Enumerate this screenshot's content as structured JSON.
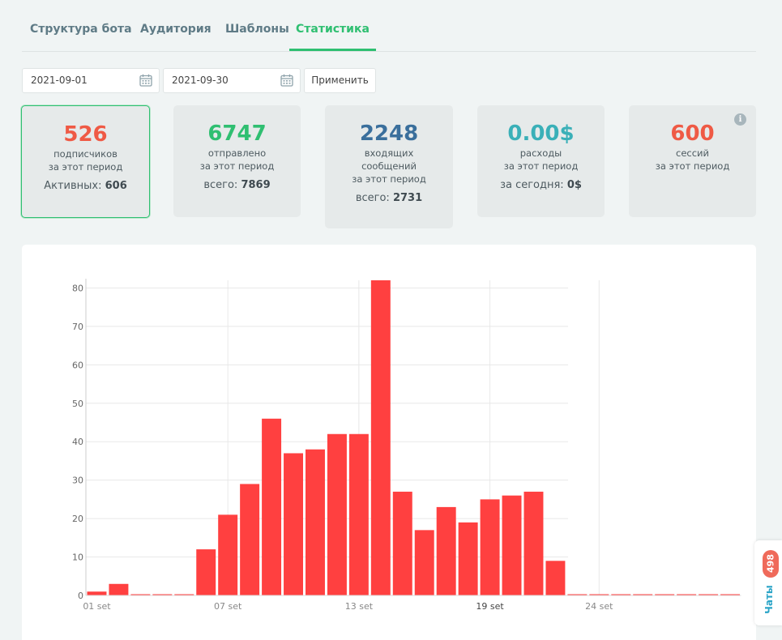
{
  "tabs": [
    {
      "label": "Структура бота",
      "active": false
    },
    {
      "label": "Аудитория",
      "active": false
    },
    {
      "label": "Шаблоны",
      "active": false
    },
    {
      "label": "Статистика",
      "active": true
    }
  ],
  "filter": {
    "date_from": "2021-09-01",
    "date_to": "2021-09-30",
    "apply_label": "Применить"
  },
  "cards": {
    "subscribers": {
      "value": "526",
      "label_line1": "подписчиков",
      "label_line2": "за этот период",
      "extra_label": "Активных:",
      "extra_value": "606",
      "color": "#ef5a45"
    },
    "sent": {
      "value": "6747",
      "label_line1": "отправлено",
      "label_line2": "за этот период",
      "extra_label": "всего:",
      "extra_value": "7869",
      "color": "#2fbf71"
    },
    "incoming": {
      "value": "2248",
      "label_line1": "входящих",
      "label_line2": "сообщений",
      "label_line3": "за этот период",
      "extra_label": "всего:",
      "extra_value": "2731",
      "color": "#3a6f9c"
    },
    "expenses": {
      "value": "0.00$",
      "label_line1": "расходы",
      "label_line2": "за этот период",
      "extra_label": "за сегодня:",
      "extra_value": "0$",
      "color": "#3ab0b8"
    },
    "sessions": {
      "value": "600",
      "label_line1": "сессий",
      "label_line2": "за этот период",
      "color": "#ef5a45",
      "info_icon": "info-icon"
    }
  },
  "chart_data": {
    "type": "bar",
    "x": [
      1,
      2,
      3,
      4,
      5,
      6,
      7,
      8,
      9,
      10,
      11,
      12,
      13,
      14,
      15,
      16,
      17,
      18,
      19,
      20,
      21,
      22,
      23,
      24,
      25,
      26,
      27,
      28,
      29,
      30
    ],
    "values": [
      1,
      3,
      0,
      0,
      0,
      12,
      21,
      29,
      46,
      37,
      38,
      42,
      42,
      82,
      27,
      17,
      23,
      19,
      25,
      26,
      27,
      9,
      0,
      0,
      0,
      0,
      0,
      0,
      0,
      0
    ],
    "xticks": [
      {
        "day": 1,
        "label": "01 set"
      },
      {
        "day": 7,
        "label": "07 set"
      },
      {
        "day": 13,
        "label": "13 set"
      },
      {
        "day": 19,
        "label": "19 set"
      },
      {
        "day": 24,
        "label": "24 set"
      }
    ],
    "yticks": [
      0,
      10,
      20,
      30,
      40,
      50,
      60,
      70,
      80
    ],
    "ylim": [
      0,
      82
    ],
    "bar_color": "#ff4040",
    "grid": true
  },
  "chat_widget": {
    "badge": "498",
    "label": "Чаты"
  }
}
